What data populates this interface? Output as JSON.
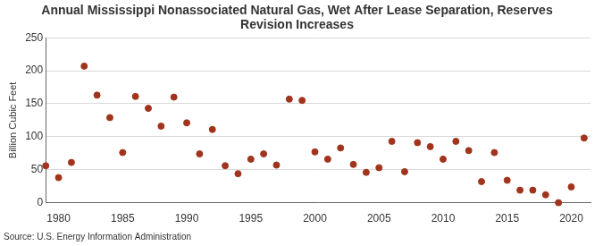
{
  "chart_data": {
    "type": "scatter",
    "title": "Annual Mississippi Nonassociated Natural Gas, Wet After Lease Separation, Reserves Revision Increases",
    "y_label": "Billion Cubic Feet",
    "source": "Source: U.S. Energy Information Administration",
    "x": [
      1979,
      1980,
      1981,
      1982,
      1983,
      1984,
      1985,
      1986,
      1987,
      1988,
      1989,
      1990,
      1991,
      1992,
      1993,
      1994,
      1995,
      1996,
      1997,
      1998,
      1999,
      2000,
      2001,
      2002,
      2003,
      2004,
      2005,
      2006,
      2007,
      2008,
      2009,
      2010,
      2011,
      2012,
      2013,
      2014,
      2015,
      2016,
      2017,
      2018,
      2019,
      2020,
      2021
    ],
    "values": [
      56,
      38,
      61,
      207,
      163,
      129,
      76,
      161,
      143,
      116,
      160,
      121,
      74,
      111,
      56,
      44,
      66,
      74,
      57,
      157,
      155,
      77,
      66,
      83,
      58,
      46,
      53,
      93,
      47,
      91,
      85,
      66,
      93,
      79,
      32,
      76,
      34,
      19,
      19,
      12,
      0,
      24,
      98
    ],
    "color": "#a0341c",
    "marker": "circle",
    "xlim": [
      1979,
      2021.5
    ],
    "xticks": [
      1980,
      1985,
      1990,
      1995,
      2000,
      2005,
      2010,
      2015,
      2020
    ],
    "ylim": [
      0,
      250
    ],
    "yticks": [
      0,
      50,
      100,
      150,
      200,
      250
    ],
    "grid": true
  }
}
